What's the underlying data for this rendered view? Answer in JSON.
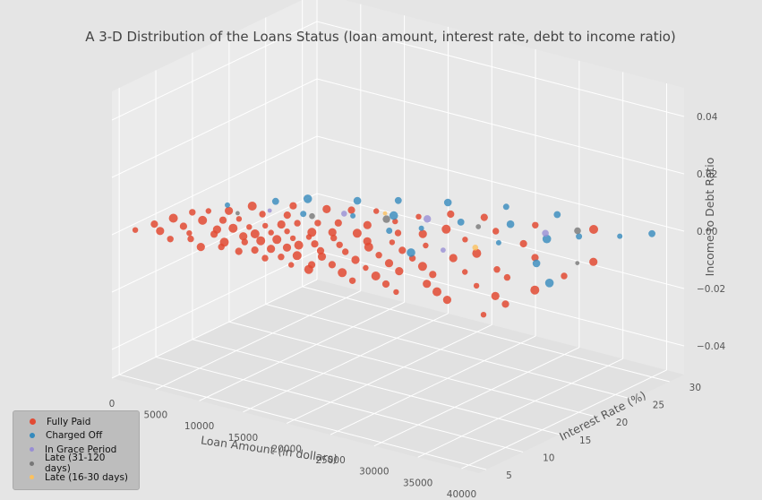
{
  "chart_data": {
    "type": "scatter",
    "projection": "3d",
    "title": "A 3-D Distribution of the Loans Status (loan amount, interest rate, debt to income ratio)",
    "xlabel": "Loan Amount (in dollars)",
    "ylabel": "Interest Rate (%)",
    "zlabel": "Income to Debt Ratio",
    "x_ticks": [
      "0",
      "5000",
      "10000",
      "15000",
      "20000",
      "25000",
      "30000",
      "35000",
      "40000"
    ],
    "y_ticks": [
      "5",
      "10",
      "15",
      "20",
      "25",
      "30"
    ],
    "z_ticks": [
      "−0.04",
      "−0.02",
      "0.00",
      "0.02",
      "0.04"
    ],
    "xlim": [
      0,
      42000
    ],
    "ylim": [
      4,
      32
    ],
    "zlim": [
      -0.05,
      0.05
    ],
    "grid": true,
    "legend_position": "lower-left",
    "series": [
      {
        "name": "Fully Paid",
        "color": "#e24a33",
        "points": [
          [
            1000,
            6,
            0
          ],
          [
            1500,
            8,
            0
          ],
          [
            2000,
            10,
            0
          ],
          [
            2500,
            12,
            0
          ],
          [
            3000,
            7,
            0
          ],
          [
            3500,
            13,
            0
          ],
          [
            4000,
            9,
            0
          ],
          [
            4500,
            11,
            0
          ],
          [
            5000,
            6,
            0
          ],
          [
            5000,
            14,
            0
          ],
          [
            5500,
            8,
            0
          ],
          [
            6000,
            12,
            0
          ],
          [
            6000,
            16,
            0
          ],
          [
            6500,
            7,
            0
          ],
          [
            7000,
            10,
            0
          ],
          [
            7000,
            13,
            0
          ],
          [
            7500,
            9,
            0
          ],
          [
            8000,
            11,
            0
          ],
          [
            8000,
            15,
            0
          ],
          [
            8500,
            6,
            0
          ],
          [
            9000,
            12,
            0
          ],
          [
            9000,
            18,
            0
          ],
          [
            9500,
            8,
            0
          ],
          [
            10000,
            7,
            0
          ],
          [
            10000,
            10,
            0
          ],
          [
            10000,
            13,
            0
          ],
          [
            10000,
            16,
            0
          ],
          [
            10500,
            11,
            0
          ],
          [
            11000,
            9,
            0
          ],
          [
            11000,
            14,
            0
          ],
          [
            11500,
            12,
            0
          ],
          [
            12000,
            7,
            0
          ],
          [
            12000,
            10,
            0
          ],
          [
            12000,
            15,
            0
          ],
          [
            12000,
            19,
            0
          ],
          [
            12500,
            13,
            0
          ],
          [
            13000,
            8,
            0
          ],
          [
            13000,
            11,
            0
          ],
          [
            13500,
            16,
            0
          ],
          [
            14000,
            9,
            0
          ],
          [
            14000,
            12,
            0
          ],
          [
            14000,
            20,
            0
          ],
          [
            14500,
            14,
            0
          ],
          [
            15000,
            7,
            0
          ],
          [
            15000,
            10,
            0
          ],
          [
            15000,
            13,
            0
          ],
          [
            15000,
            17,
            0
          ],
          [
            15500,
            11,
            0
          ],
          [
            16000,
            8,
            0
          ],
          [
            16000,
            15,
            0
          ],
          [
            16000,
            21,
            0
          ],
          [
            16500,
            12,
            0
          ],
          [
            17000,
            9,
            0
          ],
          [
            17000,
            14,
            0
          ],
          [
            17500,
            18,
            0
          ],
          [
            18000,
            7,
            0
          ],
          [
            18000,
            11,
            0
          ],
          [
            18000,
            16,
            0
          ],
          [
            18500,
            13,
            0
          ],
          [
            19000,
            10,
            0
          ],
          [
            19000,
            20,
            0
          ],
          [
            19500,
            8,
            0
          ],
          [
            20000,
            7,
            0
          ],
          [
            20000,
            12,
            0
          ],
          [
            20000,
            15,
            0
          ],
          [
            20000,
            22,
            0
          ],
          [
            21000,
            9,
            0
          ],
          [
            21000,
            14,
            0
          ],
          [
            21000,
            18,
            0
          ],
          [
            22000,
            11,
            0
          ],
          [
            22000,
            16,
            0
          ],
          [
            22000,
            24,
            0
          ],
          [
            23000,
            8,
            0
          ],
          [
            23000,
            13,
            0
          ],
          [
            23000,
            19,
            0
          ],
          [
            24000,
            10,
            0
          ],
          [
            24000,
            15,
            0
          ],
          [
            24000,
            21,
            0
          ],
          [
            25000,
            7,
            0
          ],
          [
            25000,
            12,
            0
          ],
          [
            25000,
            17,
            0
          ],
          [
            25000,
            25,
            0
          ],
          [
            26000,
            9,
            0
          ],
          [
            26000,
            14,
            0
          ],
          [
            27000,
            11,
            0
          ],
          [
            27000,
            20,
            0
          ],
          [
            28000,
            8,
            0
          ],
          [
            28000,
            13,
            0
          ],
          [
            28000,
            23,
            0
          ],
          [
            29000,
            16,
            0
          ],
          [
            30000,
            7,
            0
          ],
          [
            30000,
            12,
            0
          ],
          [
            30000,
            18,
            0
          ],
          [
            30000,
            26,
            0
          ],
          [
            31000,
            10,
            0
          ],
          [
            32000,
            14,
            0
          ],
          [
            32000,
            22,
            0
          ],
          [
            33000,
            9,
            0
          ],
          [
            34000,
            16,
            0
          ],
          [
            35000,
            8,
            0
          ],
          [
            35000,
            12,
            0
          ],
          [
            35000,
            20,
            0
          ],
          [
            35000,
            28,
            0
          ],
          [
            36000,
            15,
            0
          ],
          [
            38000,
            11,
            0
          ],
          [
            40000,
            7,
            0
          ],
          [
            40000,
            10,
            0
          ],
          [
            40000,
            14,
            0
          ],
          [
            40000,
            18,
            0
          ],
          [
            40000,
            22,
            0
          ]
        ]
      },
      {
        "name": "Charged Off",
        "color": "#348abd",
        "points": [
          [
            4000,
            15,
            0
          ],
          [
            7000,
            18,
            0
          ],
          [
            9000,
            20,
            0
          ],
          [
            11000,
            17,
            0
          ],
          [
            13000,
            22,
            0
          ],
          [
            15000,
            19,
            0
          ],
          [
            16000,
            24,
            0
          ],
          [
            18000,
            21,
            0
          ],
          [
            20000,
            18,
            0
          ],
          [
            20000,
            26,
            0
          ],
          [
            22000,
            20,
            0
          ],
          [
            24000,
            23,
            0
          ],
          [
            25000,
            15,
            0
          ],
          [
            25000,
            28,
            0
          ],
          [
            28000,
            25,
            0
          ],
          [
            30000,
            21,
            0
          ],
          [
            30000,
            29,
            0
          ],
          [
            33000,
            24,
            0
          ],
          [
            35000,
            26,
            0
          ],
          [
            36000,
            19,
            0
          ],
          [
            38000,
            28,
            0
          ],
          [
            40000,
            30,
            0
          ],
          [
            40000,
            16,
            0
          ]
        ]
      },
      {
        "name": "In Grace Period",
        "color": "#988ed5",
        "points": [
          [
            8000,
            16,
            0
          ],
          [
            14000,
            19,
            0
          ],
          [
            21000,
            22,
            0
          ],
          [
            27000,
            17,
            0
          ],
          [
            32000,
            25,
            0
          ]
        ]
      },
      {
        "name": "Late (31-120 days)",
        "color": "#777777",
        "points": [
          [
            6000,
            14,
            0
          ],
          [
            12000,
            17,
            0
          ],
          [
            18000,
            20,
            0
          ],
          [
            26000,
            23,
            0
          ],
          [
            34000,
            27,
            0
          ],
          [
            39000,
            21,
            0
          ]
        ]
      },
      {
        "name": "Late (16-30 days)",
        "color": "#fbc15e",
        "points": [
          [
            17000,
            21,
            0
          ],
          [
            29000,
            19,
            0
          ]
        ]
      }
    ]
  }
}
